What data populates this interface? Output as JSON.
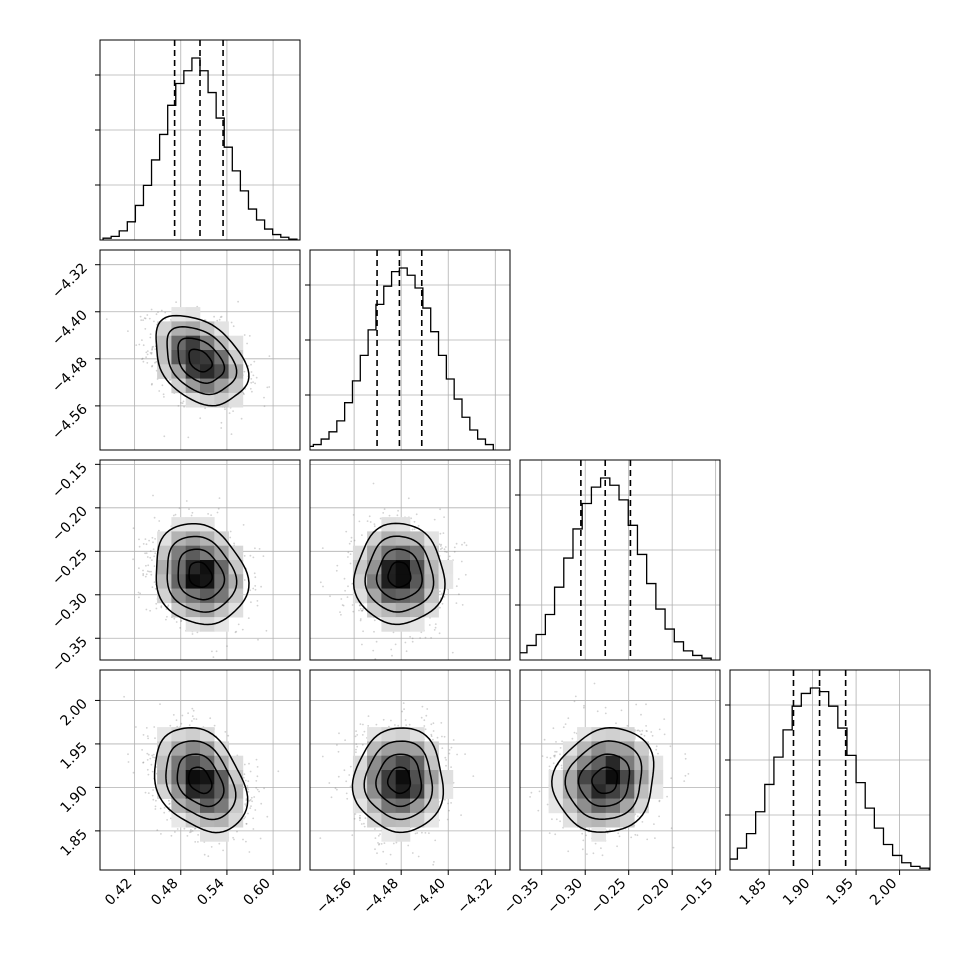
{
  "chart_data": {
    "type": "corner",
    "variables": [
      {
        "index": 0,
        "range": [
          0.375,
          0.635
        ],
        "ticks": [
          0.42,
          0.48,
          0.54,
          0.6
        ],
        "tick_labels": [
          "0.42",
          "0.48",
          "0.54",
          "0.60"
        ],
        "quantiles": [
          0.472,
          0.505,
          0.535
        ],
        "hist_counts": [
          0.01,
          0.02,
          0.05,
          0.1,
          0.19,
          0.3,
          0.44,
          0.58,
          0.74,
          0.86,
          0.93,
          1.0,
          0.93,
          0.81,
          0.67,
          0.51,
          0.38,
          0.27,
          0.17,
          0.11,
          0.06,
          0.03,
          0.015,
          0.005
        ]
      },
      {
        "index": 1,
        "range": [
          -4.635,
          -4.295
        ],
        "ticks": [
          -4.56,
          -4.48,
          -4.4,
          -4.32
        ],
        "tick_labels": [
          "−4.56",
          "−4.48",
          "−4.40",
          "−4.32"
        ],
        "quantiles": [
          -4.521,
          -4.483,
          -4.445
        ],
        "hist_counts": [
          0.02,
          0.03,
          0.06,
          0.1,
          0.16,
          0.26,
          0.38,
          0.52,
          0.66,
          0.8,
          0.9,
          0.98,
          1.0,
          0.96,
          0.89,
          0.78,
          0.65,
          0.52,
          0.39,
          0.28,
          0.18,
          0.11,
          0.06,
          0.03
        ]
      },
      {
        "index": 2,
        "range": [
          -0.375,
          -0.145
        ],
        "ticks": [
          -0.35,
          -0.3,
          -0.25,
          -0.2,
          -0.15
        ],
        "tick_labels": [
          "−0.35",
          "−0.30",
          "−0.25",
          "−0.20",
          "−0.15"
        ],
        "quantiles": [
          -0.305,
          -0.277,
          -0.248
        ],
        "hist_counts": [
          0.01,
          0.02,
          0.04,
          0.08,
          0.14,
          0.25,
          0.4,
          0.56,
          0.72,
          0.86,
          0.95,
          1.0,
          0.96,
          0.88,
          0.74,
          0.58,
          0.42,
          0.28,
          0.17,
          0.1,
          0.05,
          0.025,
          0.01
        ]
      },
      {
        "index": 3,
        "range": [
          1.805,
          2.035
        ],
        "ticks": [
          1.85,
          1.9,
          1.95,
          2.0
        ],
        "tick_labels": [
          "1.85",
          "1.90",
          "1.95",
          "2.00"
        ],
        "quantiles": [
          1.878,
          1.908,
          1.938
        ],
        "hist_counts": [
          0.01,
          0.03,
          0.06,
          0.12,
          0.2,
          0.32,
          0.47,
          0.62,
          0.77,
          0.9,
          0.97,
          1.0,
          0.98,
          0.9,
          0.78,
          0.63,
          0.48,
          0.34,
          0.23,
          0.14,
          0.08,
          0.04,
          0.02,
          0.01
        ]
      }
    ],
    "means": [
      0.505,
      -4.483,
      -0.277,
      1.908
    ],
    "stds": [
      0.03,
      0.038,
      0.029,
      0.03
    ],
    "correlations": [
      [
        1.0,
        -0.35,
        -0.15,
        -0.3
      ],
      [
        -0.35,
        1.0,
        0.0,
        0.0
      ],
      [
        -0.15,
        0.0,
        1.0,
        0.1
      ],
      [
        -0.3,
        0.0,
        0.1,
        1.0
      ]
    ],
    "quantile_levels": [
      0.16,
      0.5,
      0.84
    ],
    "contour_levels_sigma": [
      0.5,
      1.0,
      1.5,
      2.0
    ],
    "grid": true,
    "colors": {
      "line": "#000000",
      "points": "#7f7f7f",
      "grid": "#b0b0b0",
      "background": "#ffffff"
    }
  }
}
